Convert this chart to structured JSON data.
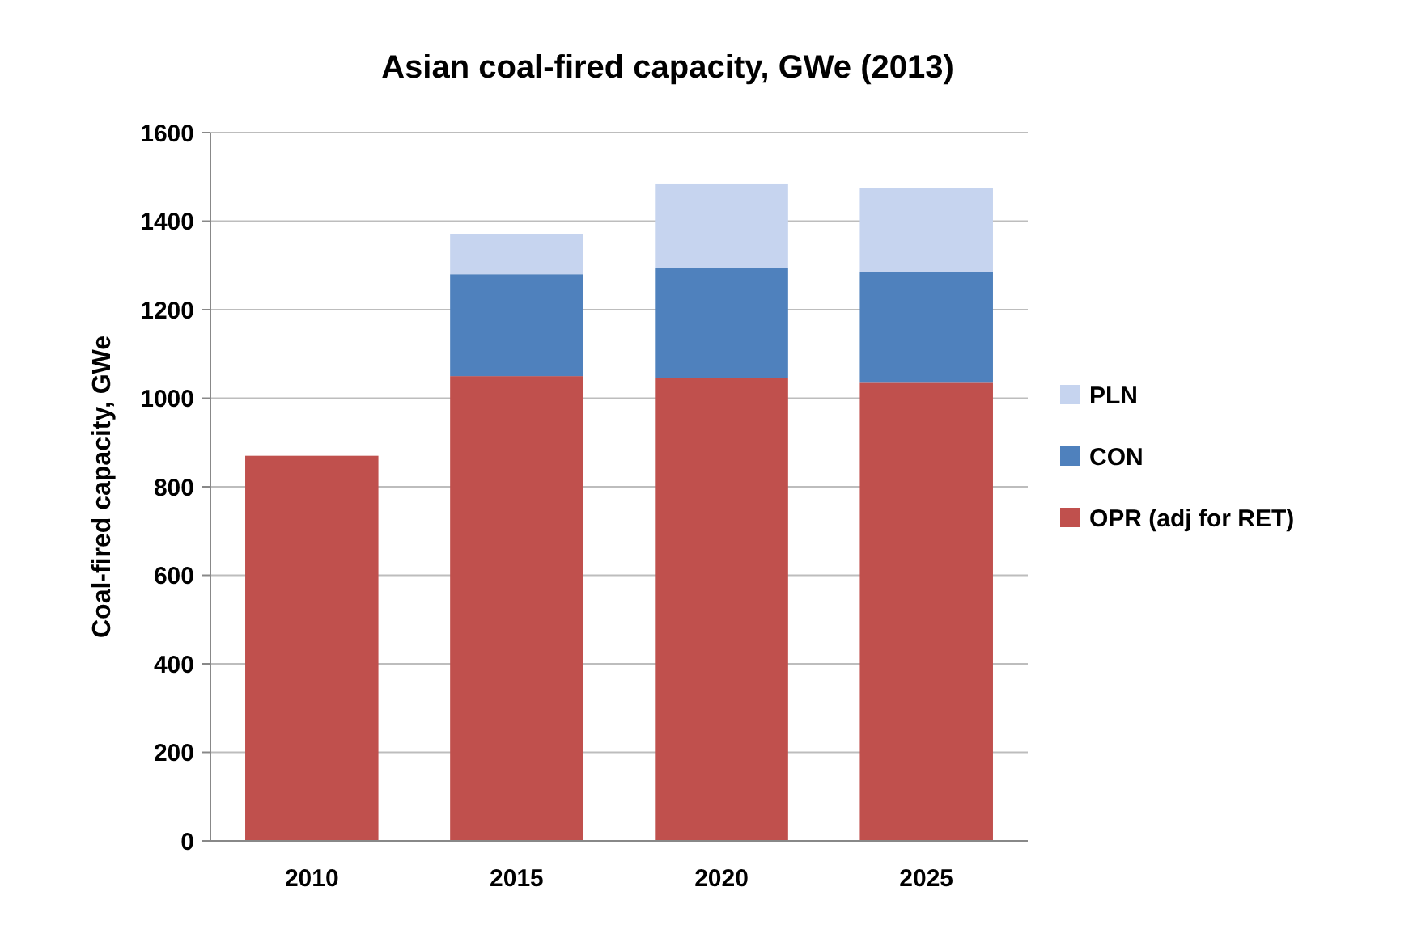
{
  "chart_data": {
    "type": "bar",
    "title": "Asian coal-fired capacity, GWe (2013)",
    "ylabel": "Coal-fired capacity, GWe",
    "categories": [
      "2010",
      "2015",
      "2020",
      "2025"
    ],
    "stacked": true,
    "series": [
      {
        "name": "OPR (adj for RET)",
        "color": "#c0504d",
        "values": [
          870,
          1050,
          1045,
          1035
        ]
      },
      {
        "name": "CON",
        "color": "#4f81bd",
        "values": [
          0,
          230,
          250,
          250
        ]
      },
      {
        "name": "PLN",
        "color": "#c6d4ef",
        "values": [
          0,
          90,
          190,
          190
        ]
      }
    ],
    "ylim": [
      0,
      1600
    ],
    "yticks": [
      0,
      200,
      400,
      600,
      800,
      1000,
      1200,
      1400,
      1600
    ],
    "grid": "y",
    "legend": "right"
  }
}
